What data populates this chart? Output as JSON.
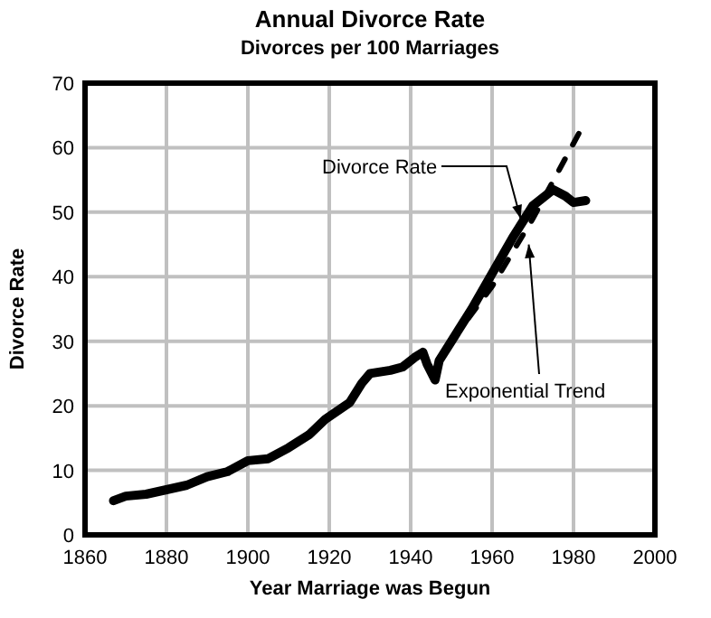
{
  "chart_data": {
    "type": "line",
    "title": "Annual Divorce Rate",
    "subtitle": "Divorces per 100 Marriages",
    "xlabel": "Year Marriage was Begun",
    "ylabel": "Divorce Rate",
    "xlim": [
      1860,
      2000
    ],
    "xticks": [
      1860,
      1880,
      1900,
      1920,
      1940,
      1960,
      1980,
      2000
    ],
    "ylim": [
      0,
      70
    ],
    "yticks": [
      0,
      10,
      20,
      30,
      40,
      50,
      60,
      70
    ],
    "grid": true,
    "series": [
      {
        "color": "#000000",
        "line_style": "solid",
        "x": [
          1867,
          1870,
          1875,
          1880,
          1885,
          1890,
          1895,
          1900,
          1905,
          1910,
          1915,
          1919,
          1925,
          1928,
          1930,
          1935,
          1938,
          1941,
          1943,
          1944,
          1946,
          1947,
          1950,
          1955,
          1960,
          1965,
          1970,
          1975,
          1978,
          1980,
          1983
        ],
        "values": [
          5.3,
          6,
          6.3,
          7,
          7.7,
          9,
          9.8,
          11.5,
          11.8,
          13.5,
          15.5,
          17.9,
          20.5,
          23.5,
          25,
          25.5,
          26,
          27.5,
          28.3,
          26.5,
          24,
          27,
          30,
          35,
          40.5,
          46,
          51,
          53.5,
          52.5,
          51.5,
          51.8
        ]
      },
      {
        "color": "#000000",
        "line_style": "dashed",
        "x": [
          1950,
          1960,
          1970,
          1982
        ],
        "values": [
          30,
          38.5,
          49,
          63
        ]
      }
    ],
    "annotations": [
      {
        "text": "Divorce Rate",
        "x": 1967,
        "y": 49
      },
      {
        "text": "Exponential Trend",
        "x": 1969,
        "y": 45
      }
    ]
  }
}
